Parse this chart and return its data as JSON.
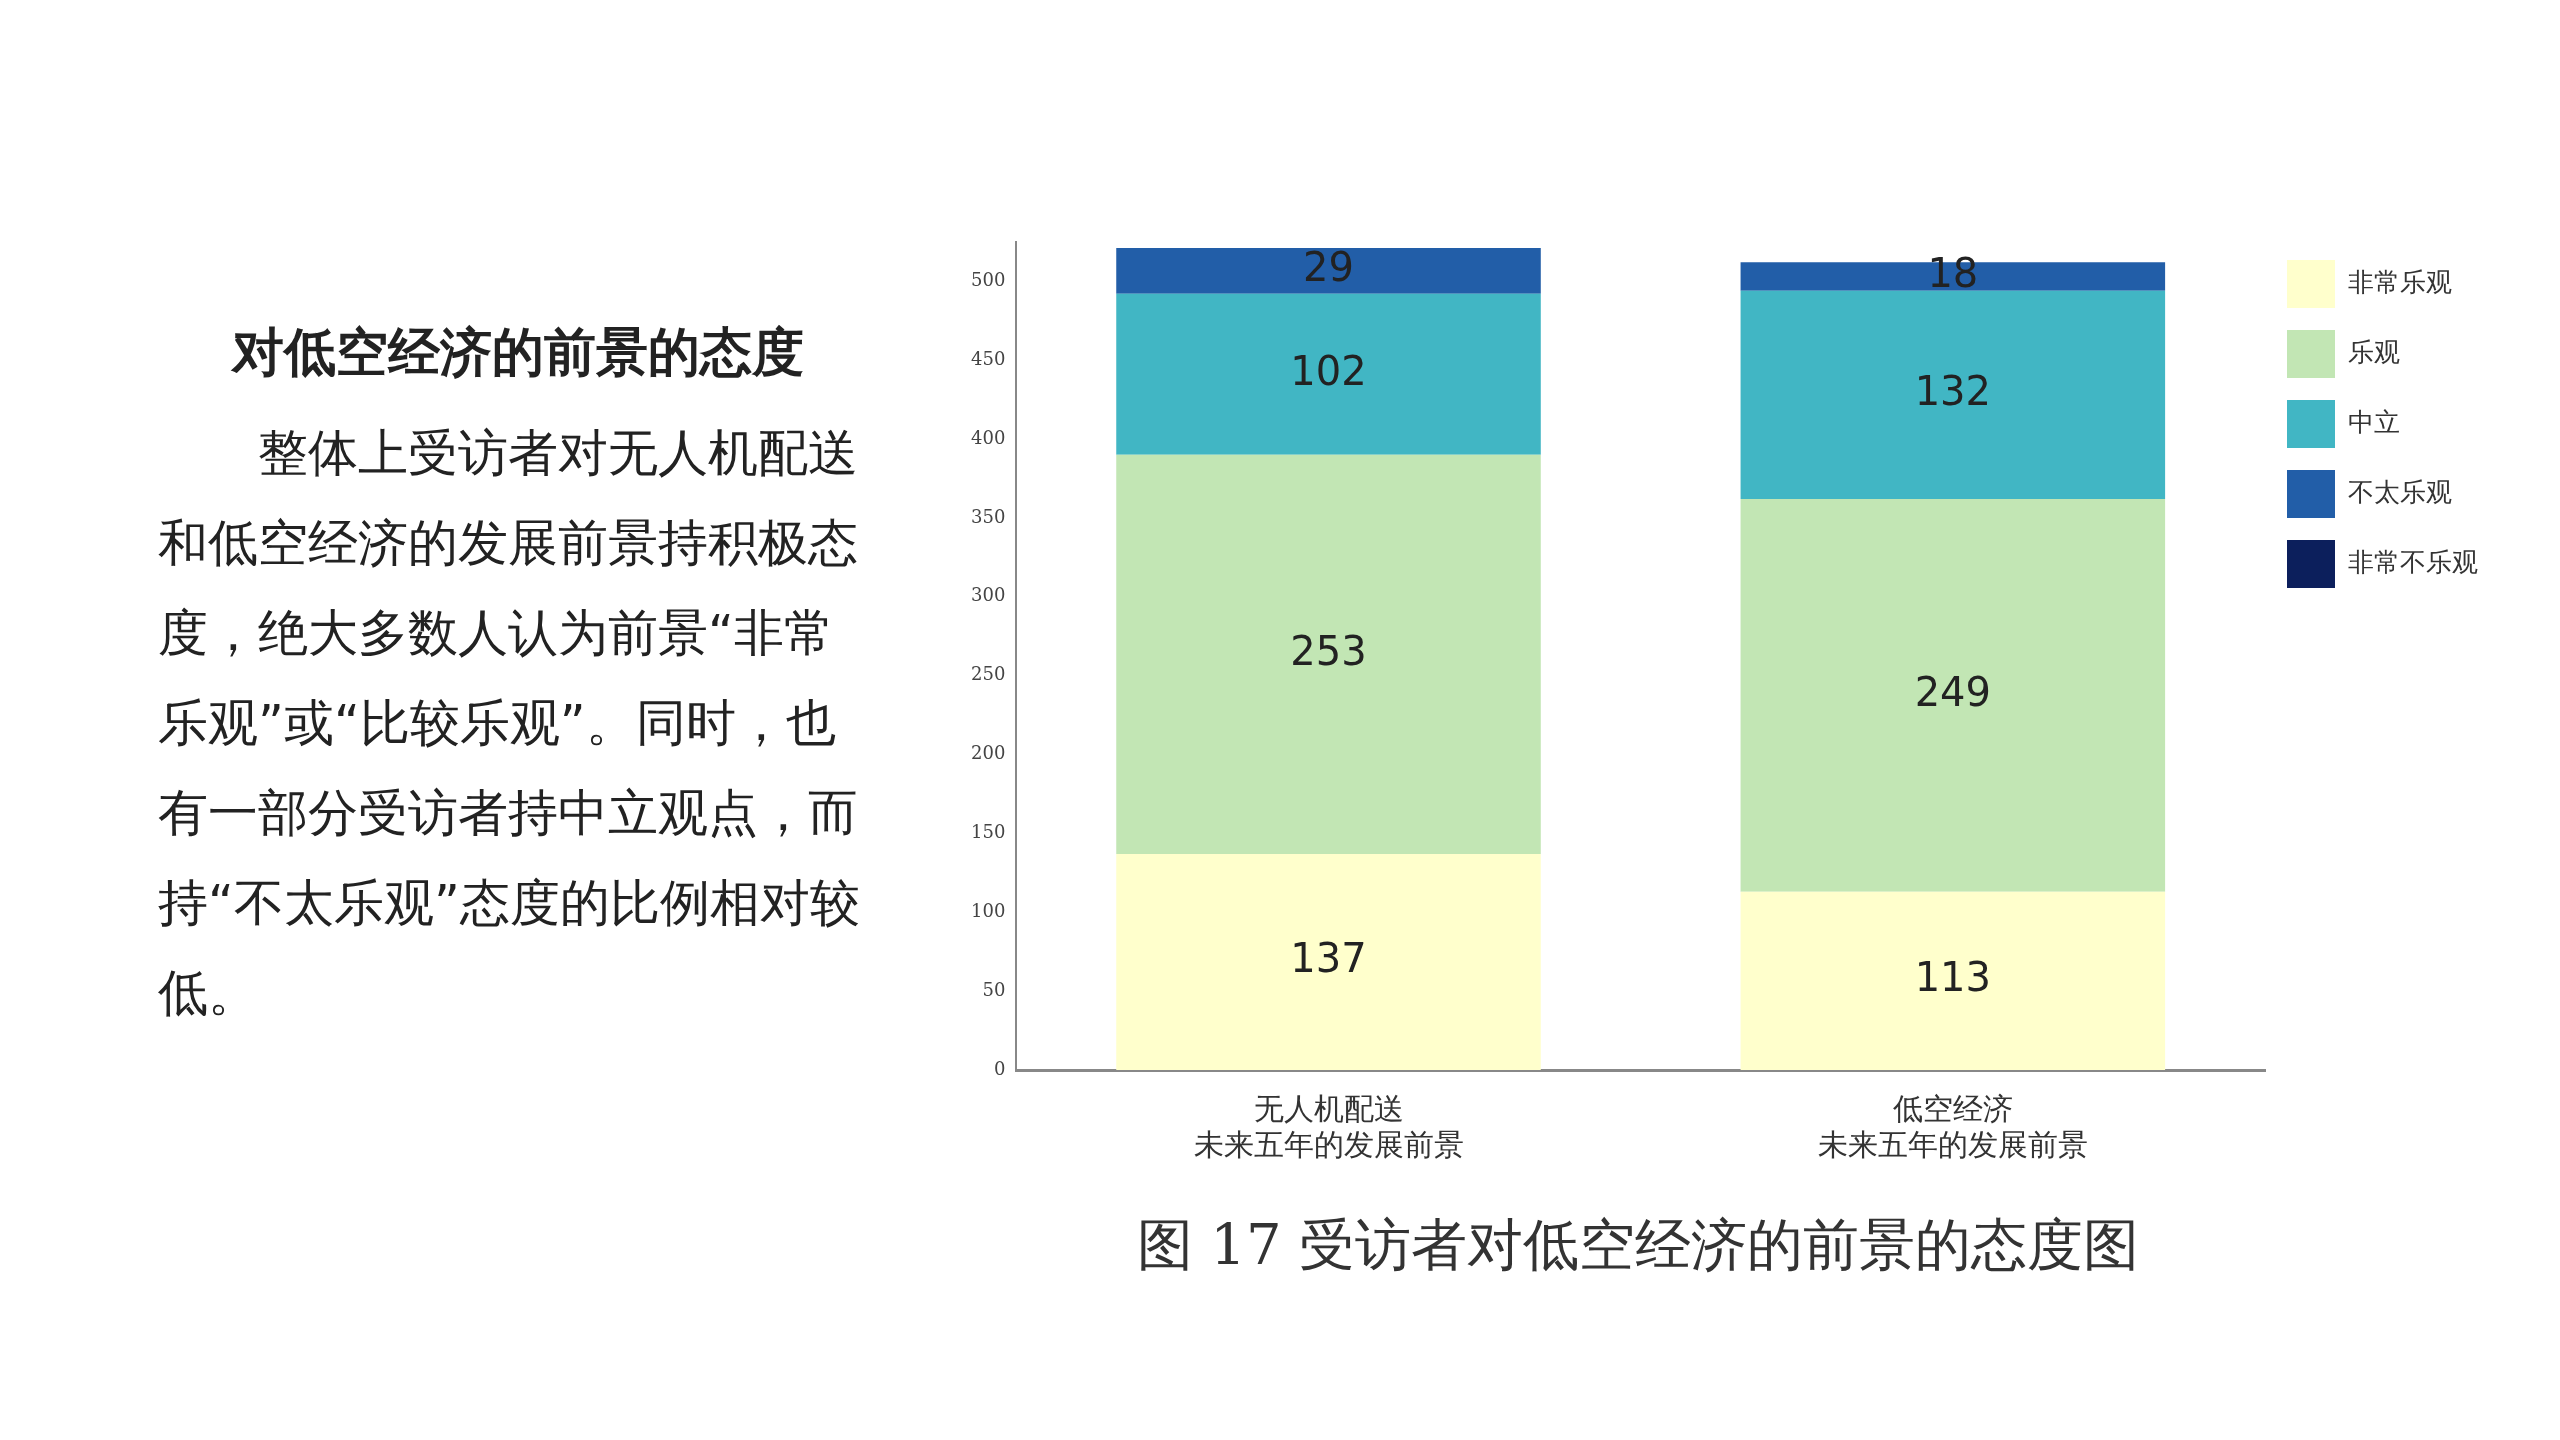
{
  "chart_data": {
    "type": "bar",
    "title": "对低空经济的前景的态度",
    "stacked": true,
    "categories": [
      "无人机配送未来五年的发展前景",
      "低空经济未来五年的发展前景"
    ],
    "series": [
      {
        "name": "非常乐观",
        "color": "#ffffcc",
        "values": [
          137,
          113
        ],
        "value_labels": [
          "137",
          "113"
        ]
      },
      {
        "name": "乐观",
        "color": "#c2e6b4",
        "values": [
          253,
          249
        ],
        "value_labels": [
          "253",
          "249"
        ]
      },
      {
        "name": "中立",
        "color": "#41b6c4",
        "values": [
          102,
          132
        ],
        "value_labels": [
          "102",
          "132"
        ]
      },
      {
        "name": "不太乐观",
        "color": "#225ea8",
        "values": [
          29,
          18
        ],
        "value_labels": [
          "29",
          "18"
        ]
      },
      {
        "name": "非常不乐观",
        "color": "#0c1f5c",
        "values": [
          0,
          0
        ],
        "value_labels": [
          null,
          null
        ]
      }
    ],
    "ylim": [
      0,
      525
    ],
    "yticks": [
      0,
      50,
      100,
      150,
      200,
      250,
      300,
      350,
      400,
      450,
      500
    ],
    "grid": false,
    "legend": "top right",
    "annotations": [
      "整体上受访者对无人机配送和低空经济的发展前景持积极态度，绝大多数人认为前景“非常乐观”或“比较乐观”。同时，也有一部分受访者持中立观点，而持“不太乐观”态度的比例相对较低。",
      "图 17  受访者对低空经济的前景的态度图"
    ]
  }
}
